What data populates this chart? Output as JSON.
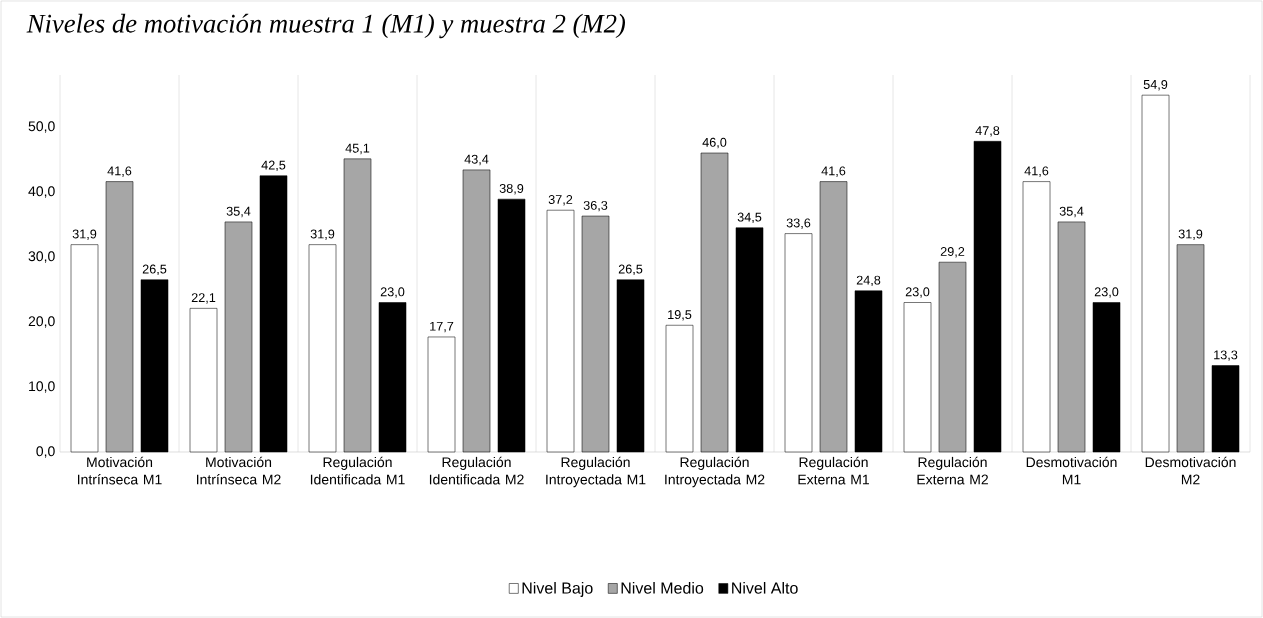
{
  "chart_data": {
    "type": "bar",
    "title": "*Niveles de motivación muestra 1 (M1) y muestra 2 (M2)*",
    "categories": [
      "Motivación Intrínseca M1",
      "Motivación Intrínseca M2",
      "Regulación Identificada M1",
      "Regulación Identificada M2",
      "Regulación Introyectada M1",
      "Regulación Introyectada M2",
      "Regulación Externa M1",
      "Regulación Externa M2",
      "Desmotivación M1",
      "Desmotivación M2"
    ],
    "series": [
      {
        "name": "Nivel Bajo",
        "color": "#ffffff",
        "values": [
          31.9,
          22.1,
          31.9,
          17.7,
          37.2,
          19.5,
          33.6,
          23.0,
          41.6,
          54.9
        ],
        "value_labels": [
          "31,9",
          "22,1",
          "31,9",
          "17,7",
          "37,2",
          "19,5",
          "33,6",
          "23,0",
          "41,6",
          "54,9"
        ]
      },
      {
        "name": "Nivel Medio",
        "color": "#a6a6a6",
        "values": [
          41.6,
          35.4,
          45.1,
          43.4,
          36.3,
          46.0,
          41.6,
          29.2,
          35.4,
          31.9
        ],
        "value_labels": [
          "41,6",
          "35,4",
          "45,1",
          "43,4",
          "36,3",
          "46,0",
          "41,6",
          "29,2",
          "35,4",
          "31,9"
        ]
      },
      {
        "name": "Nivel Alto",
        "color": "#000000",
        "values": [
          26.5,
          42.5,
          23.0,
          38.9,
          26.5,
          34.5,
          24.8,
          47.8,
          23.0,
          13.3
        ],
        "value_labels": [
          "26,5",
          "42,5",
          "23,0",
          "38,9",
          "26,5",
          "34,5",
          "24,8",
          "47,8",
          "23,0",
          "13,3"
        ]
      }
    ],
    "ylim": [
      0,
      58
    ],
    "yticks": [
      {
        "value": 0,
        "label": "0,0"
      },
      {
        "value": 10,
        "label": "10,0"
      },
      {
        "value": 20,
        "label": "20,0"
      },
      {
        "value": 30,
        "label": "30,0"
      },
      {
        "value": 40,
        "label": "40,0"
      },
      {
        "value": 50,
        "label": "50,0"
      }
    ],
    "grid": "x",
    "legend": "bottom"
  }
}
